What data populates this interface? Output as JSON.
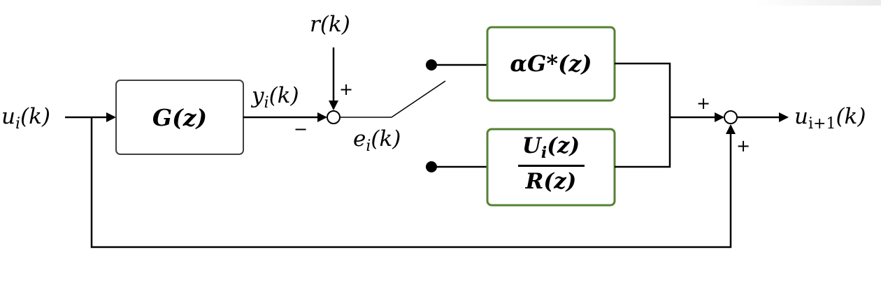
{
  "labels": {
    "input": "u",
    "input_sub": "i",
    "input_arg": "(k)",
    "output": "u",
    "output_sub": "i+1",
    "output_arg": "(k)",
    "reference": "r(k)",
    "plant_output": "y",
    "plant_output_sub": "i",
    "plant_output_arg": "(k)",
    "error": "e",
    "error_sub": "i",
    "error_arg": "(k)"
  },
  "blocks": {
    "plant": "G(z)",
    "adjoint": "αG*(z)",
    "ratio_num": "U",
    "ratio_num_sub": "i",
    "ratio_num_arg": "(z)",
    "ratio_den": "R(z)"
  },
  "signs": {
    "ref_plus": "+",
    "fb_minus": "−",
    "sum2_plus_top": "+",
    "sum2_plus_bottom": "+"
  },
  "colors": {
    "line": "#000000",
    "green_border": "#548235",
    "plant_border": "#404040"
  }
}
